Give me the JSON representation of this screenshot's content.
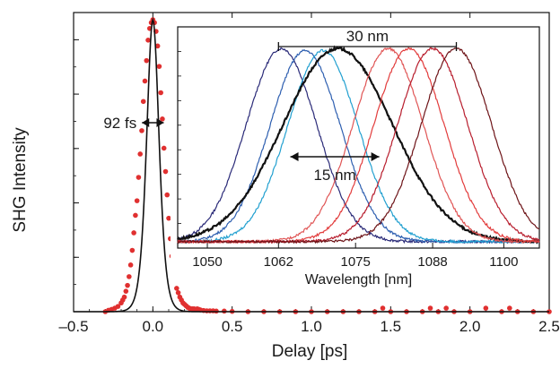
{
  "chart_data": [
    {
      "type": "line",
      "xlabel": "Delay [ps]",
      "ylabel": "SHG Intensity",
      "xlim": [
        -0.5,
        2.5
      ],
      "ylim": [
        0,
        1.0
      ],
      "x_ticks": [
        "–0.5",
        "0.0",
        "0.5",
        "1.0",
        "1.5",
        "2.0",
        "2.5"
      ],
      "x_tick_values": [
        -0.5,
        0.0,
        0.5,
        1.0,
        1.5,
        2.0,
        2.5
      ],
      "grid": false,
      "annotations": [
        {
          "text": "92 fs",
          "kind": "fwhm-arrow",
          "x_from": -0.046,
          "x_to": 0.046,
          "y": 0.5
        }
      ],
      "series": [
        {
          "kind": "fit-line",
          "color": "#111111",
          "model": "sech2",
          "center": 0.0,
          "fwhm_ps": 0.092,
          "peak": 1.0
        },
        {
          "kind": "scatter",
          "color": "#e03030",
          "x": [
            -0.3,
            -0.28,
            -0.26,
            -0.24,
            -0.22,
            -0.2,
            -0.19,
            -0.18,
            -0.17,
            -0.16,
            -0.15,
            -0.14,
            -0.13,
            -0.12,
            -0.11,
            -0.1,
            -0.09,
            -0.08,
            -0.07,
            -0.06,
            -0.05,
            -0.04,
            -0.03,
            -0.02,
            -0.01,
            0.0,
            0.01,
            0.02,
            0.03,
            0.04,
            0.05,
            0.06,
            0.07,
            0.08,
            0.09,
            0.1,
            0.11,
            0.12,
            0.13,
            0.14,
            0.15,
            0.16,
            0.17,
            0.18,
            0.19,
            0.2,
            0.21,
            0.22,
            0.23,
            0.24,
            0.25,
            0.26,
            0.27,
            0.28,
            0.29,
            0.3,
            0.32,
            0.34,
            0.36,
            0.38,
            0.4,
            0.45,
            0.5,
            0.6,
            0.7,
            0.8,
            0.9,
            1.0,
            1.1,
            1.2,
            1.3,
            1.4,
            1.45,
            1.5,
            1.6,
            1.7,
            1.75,
            1.8,
            1.85,
            1.9,
            2.0,
            2.1,
            2.2,
            2.25,
            2.3,
            2.4,
            2.5
          ],
          "y": [
            0.0,
            0.005,
            0.008,
            0.012,
            0.018,
            0.03,
            0.04,
            0.05,
            0.07,
            0.09,
            0.12,
            0.16,
            0.21,
            0.27,
            0.33,
            0.38,
            0.46,
            0.54,
            0.62,
            0.72,
            0.79,
            0.86,
            0.93,
            0.97,
            0.99,
            1.0,
            0.99,
            0.96,
            0.91,
            0.84,
            0.75,
            0.66,
            0.56,
            0.48,
            0.4,
            0.32,
            0.25,
            0.19,
            0.14,
            0.11,
            0.08,
            0.065,
            0.05,
            0.04,
            0.03,
            0.025,
            0.02,
            0.015,
            0.012,
            0.01,
            0.01,
            0.01,
            0.008,
            0.01,
            0.008,
            0.006,
            0.004,
            0.003,
            0.003,
            0.003,
            0.002,
            0.002,
            0.001,
            0.0,
            0.0,
            0.0,
            0.0,
            0.0,
            0.0,
            0.0,
            0.0,
            0.0,
            0.012,
            0.0,
            0.0,
            0.0,
            0.012,
            0.0,
            0.012,
            0.0,
            0.0,
            0.012,
            0.0,
            0.012,
            0.0,
            0.0,
            0.0
          ]
        }
      ]
    },
    {
      "type": "line",
      "role": "inset",
      "xlabel": "Wavelength [nm]",
      "xlim": [
        1045,
        1106
      ],
      "ylim": [
        0,
        1.0
      ],
      "x_ticks": [
        "1050",
        "1062",
        "1075",
        "1088",
        "1100"
      ],
      "x_tick_values": [
        1050,
        1062,
        1075,
        1088,
        1100
      ],
      "grid": false,
      "annotations": [
        {
          "text": "30 nm",
          "kind": "bracket",
          "x_from": 1062,
          "x_to": 1092
        },
        {
          "text": "15 nm",
          "kind": "double-arrow",
          "x_from": 1064,
          "x_to": 1079
        }
      ],
      "series": [
        {
          "center": 1062.5,
          "color": "#2a2a78",
          "peak": 0.95
        },
        {
          "center": 1066.5,
          "color": "#2e5fb0",
          "peak": 0.94
        },
        {
          "center": 1069.5,
          "color": "#22a0d0",
          "peak": 0.94
        },
        {
          "center": 1072.0,
          "color": "#111111",
          "peak": 0.95,
          "width_factor": 1.55,
          "bold": true
        },
        {
          "center": 1080.5,
          "color": "#e05555",
          "peak": 0.95
        },
        {
          "center": 1084.0,
          "color": "#e23c3c",
          "peak": 0.95
        },
        {
          "center": 1088.0,
          "color": "#b81e2e",
          "peak": 0.95
        },
        {
          "center": 1092.0,
          "color": "#6e1418",
          "peak": 0.95
        }
      ],
      "base_fwhm_nm": 14.0
    }
  ]
}
